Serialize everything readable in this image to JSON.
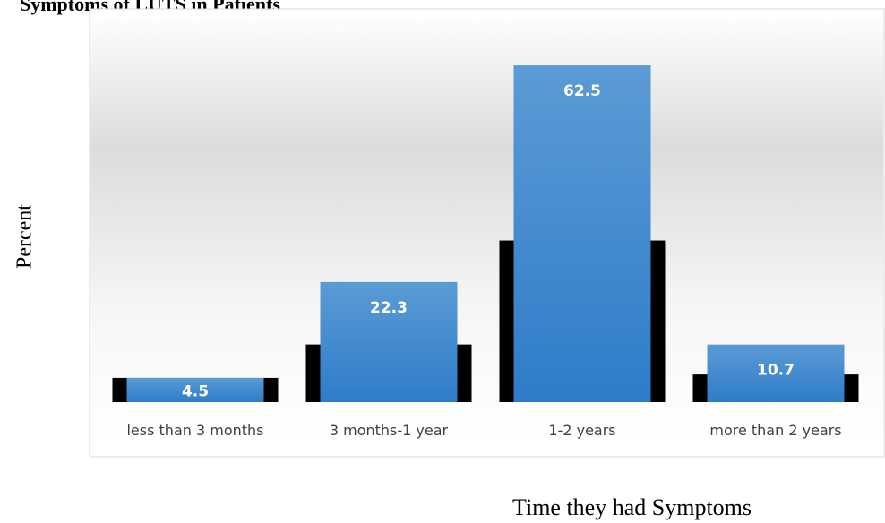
{
  "chart_data": {
    "type": "bar",
    "title": "Symptoms of LUTS in Patients",
    "xlabel": "Time they had Symptoms",
    "ylabel": "Percent",
    "categories": [
      "less than 3 months",
      "3 months-1 year",
      "1-2 years",
      "more than 2 years"
    ],
    "values": [
      4.5,
      22.3,
      62.5,
      10.7
    ],
    "ylim": [
      0,
      68
    ],
    "grid": false,
    "legend": "none",
    "colors": {
      "bar_top": "#5b9bd5",
      "bar_bottom": "#2e7cc8",
      "shadow": "#000000",
      "label": "#ffffff"
    }
  }
}
